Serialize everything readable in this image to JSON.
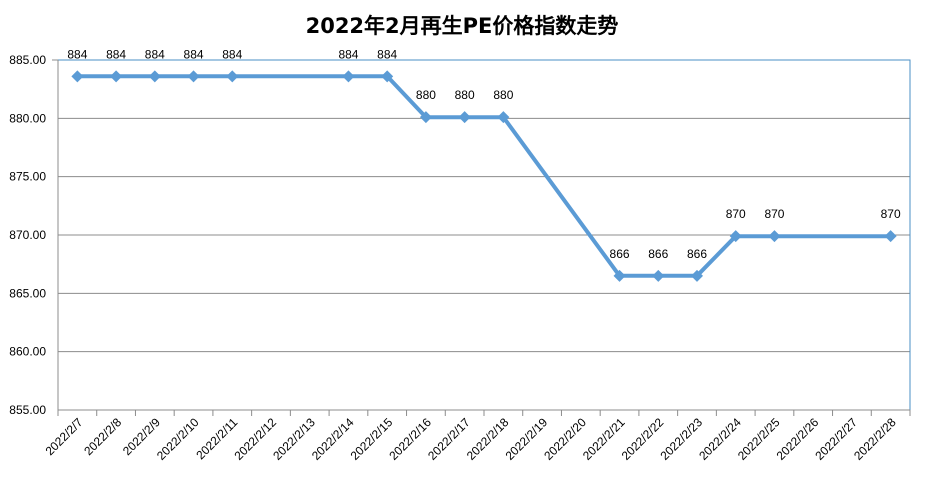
{
  "chart_data": {
    "type": "line",
    "title": "2022年2月再生PE价格指数走势",
    "xlabel": "",
    "ylabel": "",
    "ylim": [
      855,
      885
    ],
    "yticks": [
      "855.00",
      "860.00",
      "865.00",
      "870.00",
      "875.00",
      "880.00",
      "885.00"
    ],
    "categories": [
      "2022/2/7",
      "2022/2/8",
      "2022/2/9",
      "2022/2/10",
      "2022/2/11",
      "2022/2/12",
      "2022/2/13",
      "2022/2/14",
      "2022/2/15",
      "2022/2/16",
      "2022/2/17",
      "2022/2/18",
      "2022/2/19",
      "2022/2/20",
      "2022/2/21",
      "2022/2/22",
      "2022/2/23",
      "2022/2/24",
      "2022/2/25",
      "2022/2/26",
      "2022/2/27",
      "2022/2/28"
    ],
    "series": [
      {
        "values": [
          883.6,
          883.6,
          883.6,
          883.6,
          883.6,
          null,
          null,
          883.6,
          883.6,
          880.1,
          880.1,
          880.1,
          null,
          null,
          866.5,
          866.5,
          866.5,
          869.9,
          869.9,
          null,
          null,
          869.9
        ],
        "labels": [
          "884",
          "884",
          "884",
          "884",
          "884",
          "",
          "",
          "884",
          "884",
          "880",
          "880",
          "880",
          "",
          "",
          "866",
          "866",
          "866",
          "870",
          "870",
          "",
          "",
          "870"
        ]
      }
    ],
    "grid": true,
    "legend": "none",
    "colors": {
      "line": "#5b9bd5",
      "grid": "#8c8c8c",
      "border": "#4a8fc4"
    }
  }
}
